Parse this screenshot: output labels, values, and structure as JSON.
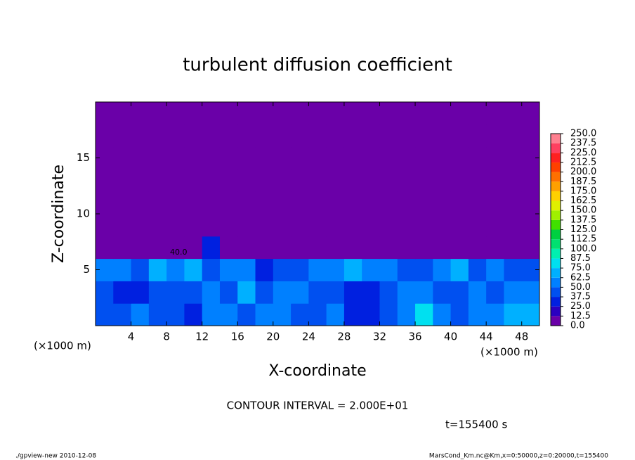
{
  "chart_data": {
    "type": "heatmap",
    "title": "turbulent diffusion coefficient",
    "x_label": "X-coordinate",
    "y_label": "Z-coordinate",
    "x_units": "(×1000 m)",
    "y_units": "(×1000 m)",
    "xlim": [
      0,
      50
    ],
    "ylim": [
      0,
      20
    ],
    "xticks": [
      4,
      8,
      12,
      16,
      20,
      24,
      28,
      32,
      36,
      40,
      44,
      48
    ],
    "yticks": [
      5,
      10,
      15
    ],
    "x": [
      1,
      3,
      5,
      7,
      9,
      11,
      13,
      15,
      17,
      19,
      21,
      23,
      25,
      27,
      29,
      31,
      33,
      35,
      37,
      39,
      41,
      43,
      45,
      47,
      49
    ],
    "y": [
      1,
      3,
      5,
      7,
      9,
      11,
      13,
      15,
      17,
      19
    ],
    "values": [
      [
        40,
        45,
        50,
        45,
        40,
        35,
        50,
        62,
        40,
        50,
        55,
        40,
        45,
        60,
        35,
        35,
        45,
        55,
        75,
        50,
        45,
        60,
        55,
        70,
        65
      ],
      [
        45,
        35,
        35,
        40,
        45,
        40,
        55,
        40,
        70,
        45,
        60,
        55,
        40,
        45,
        30,
        30,
        40,
        60,
        50,
        45,
        40,
        55,
        45,
        50,
        55
      ],
      [
        50,
        55,
        45,
        65,
        50,
        70,
        45,
        60,
        50,
        25,
        40,
        45,
        60,
        55,
        70,
        50,
        55,
        45,
        45,
        60,
        70,
        45,
        50,
        40,
        45
      ],
      [
        0,
        0,
        0,
        0,
        0,
        0,
        30,
        0,
        0,
        0,
        0,
        0,
        0,
        0,
        0,
        0,
        0,
        0,
        0,
        0,
        0,
        0,
        0,
        0,
        0
      ],
      [
        0,
        0,
        0,
        0,
        0,
        0,
        0,
        0,
        0,
        0,
        0,
        0,
        0,
        0,
        0,
        0,
        0,
        0,
        0,
        0,
        0,
        0,
        0,
        0,
        0
      ],
      [
        0,
        0,
        0,
        0,
        0,
        0,
        0,
        0,
        0,
        0,
        0,
        0,
        0,
        0,
        0,
        0,
        0,
        0,
        0,
        0,
        0,
        0,
        0,
        0,
        0
      ],
      [
        0,
        0,
        0,
        0,
        0,
        0,
        0,
        0,
        0,
        0,
        0,
        0,
        0,
        0,
        0,
        0,
        0,
        0,
        0,
        0,
        0,
        0,
        0,
        0,
        0
      ],
      [
        0,
        0,
        0,
        0,
        0,
        0,
        0,
        0,
        0,
        0,
        0,
        0,
        0,
        0,
        0,
        0,
        0,
        0,
        0,
        0,
        0,
        0,
        0,
        0,
        0
      ],
      [
        0,
        0,
        0,
        0,
        0,
        0,
        0,
        0,
        0,
        0,
        0,
        0,
        0,
        0,
        0,
        0,
        0,
        0,
        0,
        0,
        0,
        0,
        0,
        0,
        0
      ],
      [
        0,
        0,
        0,
        0,
        0,
        0,
        0,
        0,
        0,
        0,
        0,
        0,
        0,
        0,
        0,
        0,
        0,
        0,
        0,
        0,
        0,
        0,
        0,
        0,
        0
      ]
    ],
    "colorbar": {
      "levels": [
        {
          "value": 0,
          "label": "0.0"
        },
        {
          "value": 12.5,
          "label": "12.5"
        },
        {
          "value": 25,
          "label": "25.0"
        },
        {
          "value": 37.5,
          "label": "37.5"
        },
        {
          "value": 50,
          "label": "50.0"
        },
        {
          "value": 62.5,
          "label": "62.5"
        },
        {
          "value": 75,
          "label": "75.0"
        },
        {
          "value": 87.5,
          "label": "87.5"
        },
        {
          "value": 100,
          "label": "100.0"
        },
        {
          "value": 112.5,
          "label": "112.5"
        },
        {
          "value": 125,
          "label": "125.0"
        },
        {
          "value": 137.5,
          "label": "137.5"
        },
        {
          "value": 150,
          "label": "150.0"
        },
        {
          "value": 162.5,
          "label": "162.5"
        },
        {
          "value": 175,
          "label": "175.0"
        },
        {
          "value": 187.5,
          "label": "187.5"
        },
        {
          "value": 200,
          "label": "200.0"
        },
        {
          "value": 212.5,
          "label": "212.5"
        },
        {
          "value": 225,
          "label": "225.0"
        },
        {
          "value": 237.5,
          "label": "237.5"
        },
        {
          "value": 250,
          "label": "250.0"
        }
      ],
      "colors": [
        "#6a00a8",
        "#2a00c0",
        "#0020e0",
        "#0050f0",
        "#0080ff",
        "#00b0ff",
        "#00e0f0",
        "#00f0b0",
        "#00e070",
        "#00d040",
        "#40e000",
        "#a0f000",
        "#e0f000",
        "#ffd000",
        "#ffa000",
        "#ff7000",
        "#ff4000",
        "#ff2020",
        "#ff4060",
        "#ff8090"
      ]
    },
    "annotations": {
      "contour_label": "40.0",
      "contour_interval": "CONTOUR INTERVAL = 2.000E+01",
      "time": "t=155400 s"
    },
    "footer_left": "./gpview-new   2010-12-08",
    "footer_right": "MarsCond_Km.nc@Km,x=0:50000,z=0:20000,t=155400"
  }
}
